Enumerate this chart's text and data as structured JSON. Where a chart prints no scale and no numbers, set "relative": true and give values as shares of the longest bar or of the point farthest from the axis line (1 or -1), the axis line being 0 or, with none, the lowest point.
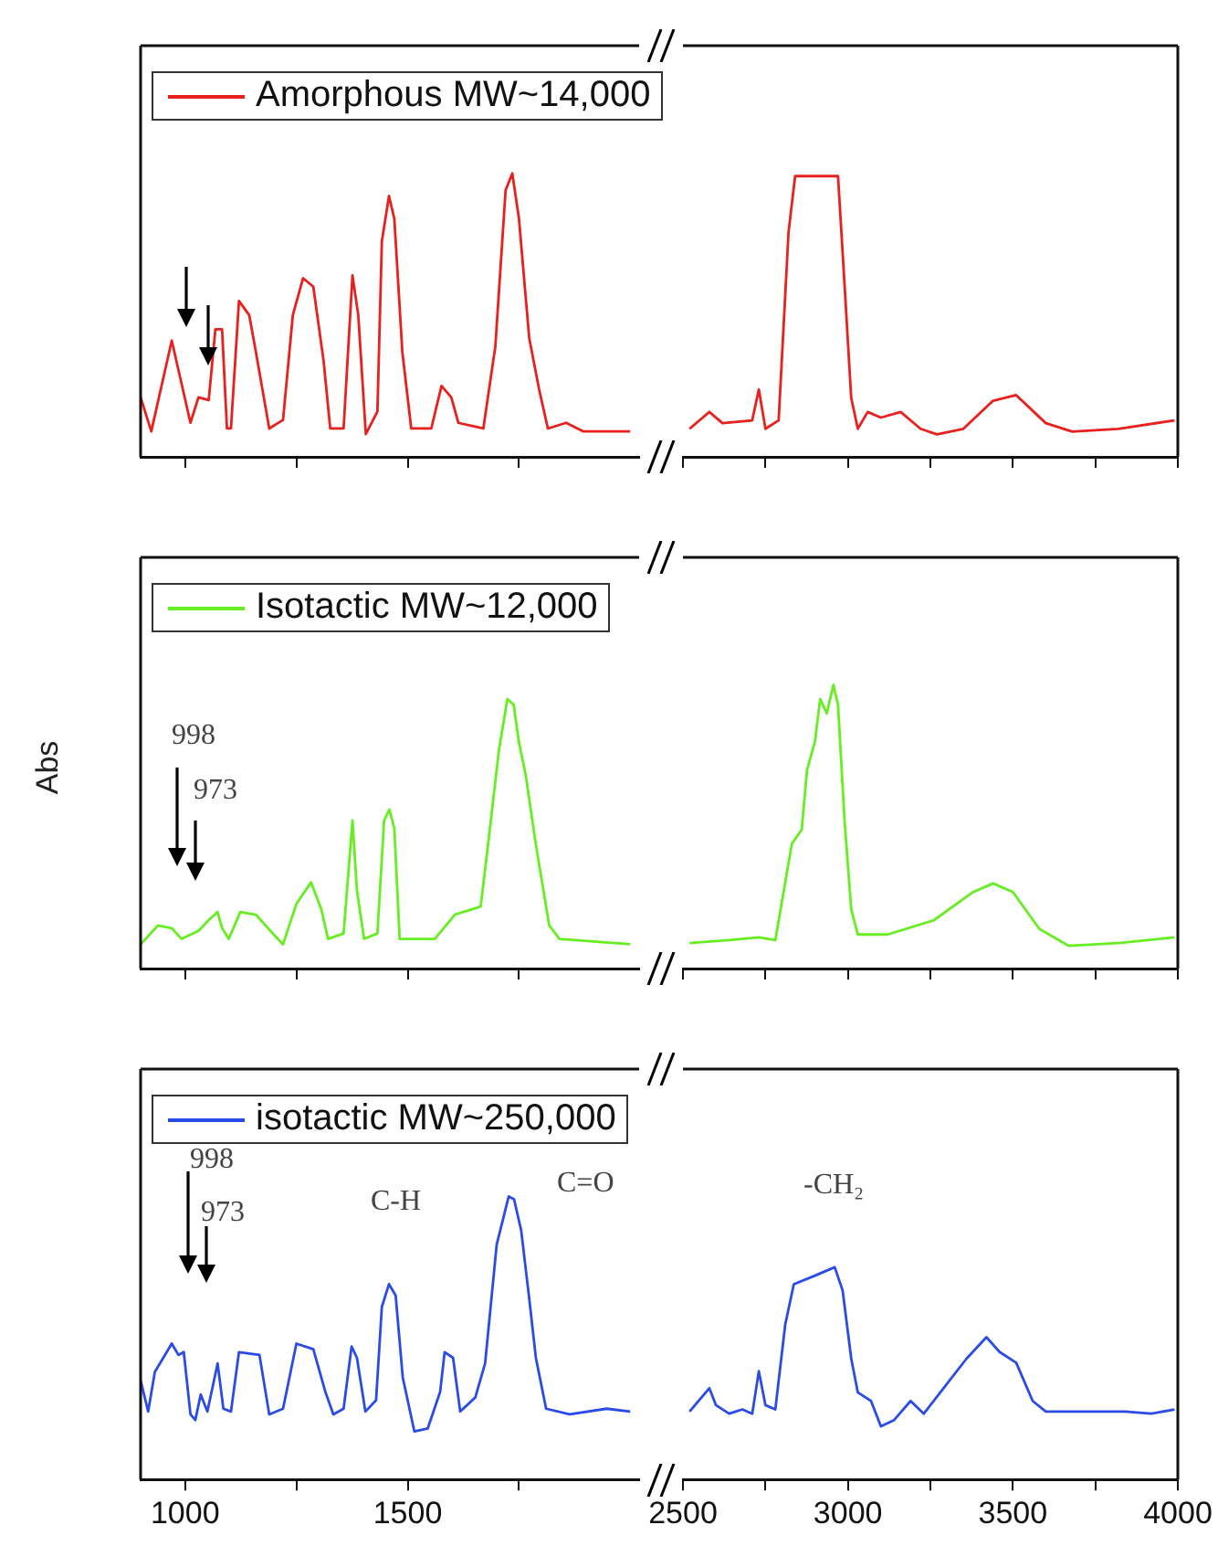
{
  "chart_data": [
    {
      "type": "line",
      "relative": true,
      "legend": "top left",
      "tick_labels": false,
      "xlim": [
        900,
        2020
      ],
      "xticks": [
        1000,
        {
          "value": 1250,
          "label": null
        },
        1500,
        {
          "value": 1750,
          "label": null
        }
      ],
      "x": [
        900,
        924,
        970,
        1012,
        1030,
        1053,
        1068,
        1083,
        1094,
        1103,
        1121,
        1144,
        1159,
        1189,
        1220,
        1242,
        1265,
        1288,
        1311,
        1326,
        1356,
        1376,
        1389,
        1406,
        1432,
        1442,
        1458,
        1470,
        1488,
        1508,
        1553,
        1576,
        1598,
        1614,
        1670,
        1697,
        1720,
        1735,
        1750,
        1773,
        1795,
        1815,
        1856,
        1894,
        2000
      ],
      "series": [
        {
          "name": "Amorphous MW~14,000",
          "color": "#e8201e",
          "values": [
            0.21,
            0.09,
            0.41,
            0.12,
            0.21,
            0.2,
            0.45,
            0.45,
            0.1,
            0.1,
            0.55,
            0.5,
            0.37,
            0.1,
            0.13,
            0.5,
            0.63,
            0.6,
            0.34,
            0.1,
            0.1,
            0.64,
            0.5,
            0.08,
            0.16,
            0.76,
            0.92,
            0.84,
            0.37,
            0.1,
            0.1,
            0.25,
            0.21,
            0.12,
            0.1,
            0.39,
            0.94,
            1.0,
            0.84,
            0.42,
            0.24,
            0.1,
            0.12,
            0.09,
            0.09
          ]
        }
      ]
    },
    {
      "type": "line",
      "relative": true,
      "tick_labels": false,
      "xlim": [
        2500,
        4000
      ],
      "xticks": [
        2500,
        {
          "value": 2750,
          "label": null
        },
        3000,
        {
          "value": 3250,
          "label": null
        },
        3500,
        {
          "value": 3750,
          "label": null
        },
        4000
      ],
      "x": [
        2520,
        2580,
        2620,
        2710,
        2730,
        2750,
        2790,
        2820,
        2840,
        2970,
        2990,
        3010,
        3030,
        3060,
        3100,
        3160,
        3220,
        3270,
        3350,
        3440,
        3510,
        3600,
        3680,
        3820,
        3990
      ],
      "series": [
        {
          "color": "#e8201e",
          "values": [
            0.1,
            0.16,
            0.12,
            0.13,
            0.24,
            0.1,
            0.13,
            0.8,
            1.0,
            1.0,
            0.61,
            0.21,
            0.1,
            0.16,
            0.14,
            0.16,
            0.1,
            0.08,
            0.1,
            0.2,
            0.22,
            0.12,
            0.09,
            0.1,
            0.13
          ]
        }
      ]
    },
    {
      "type": "line",
      "relative": true,
      "legend": "top left",
      "tick_labels": false,
      "ylabel": "Abs",
      "xlim": [
        900,
        2020
      ],
      "xticks": [
        1000,
        {
          "value": 1250,
          "label": null
        },
        1500,
        {
          "value": 1750,
          "label": null
        }
      ],
      "x": [
        900,
        939,
        970,
        992,
        1030,
        1053,
        1073,
        1083,
        1098,
        1124,
        1159,
        1197,
        1220,
        1250,
        1283,
        1306,
        1321,
        1356,
        1376,
        1386,
        1402,
        1432,
        1447,
        1459,
        1470,
        1482,
        1561,
        1606,
        1664,
        1682,
        1705,
        1724,
        1738,
        1750,
        1765,
        1788,
        1818,
        1841,
        2000
      ],
      "series": [
        {
          "name": "Isotactic MW~12,000",
          "color": "#66ee22",
          "values": [
            0.09,
            0.16,
            0.15,
            0.11,
            0.14,
            0.18,
            0.21,
            0.15,
            0.11,
            0.21,
            0.2,
            0.13,
            0.09,
            0.24,
            0.32,
            0.22,
            0.11,
            0.13,
            0.55,
            0.29,
            0.11,
            0.13,
            0.55,
            0.59,
            0.52,
            0.11,
            0.11,
            0.2,
            0.23,
            0.48,
            0.81,
            1.0,
            0.98,
            0.84,
            0.72,
            0.46,
            0.16,
            0.11,
            0.09
          ]
        }
      ],
      "annotations": [
        "998",
        "973"
      ]
    },
    {
      "type": "line",
      "relative": true,
      "tick_labels": false,
      "xlim": [
        2500,
        4000
      ],
      "xticks": [
        2500,
        {
          "value": 2750,
          "label": null
        },
        3000,
        {
          "value": 3250,
          "label": null
        },
        3500,
        {
          "value": 3750,
          "label": null
        },
        4000
      ],
      "x": [
        2520,
        2640,
        2730,
        2780,
        2830,
        2860,
        2876,
        2900,
        2916,
        2936,
        2956,
        2970,
        2990,
        3010,
        3030,
        3120,
        3260,
        3380,
        3440,
        3500,
        3580,
        3670,
        3820,
        3990
      ],
      "series": [
        {
          "color": "#66ee22",
          "values": [
            0.09,
            0.1,
            0.11,
            0.1,
            0.44,
            0.49,
            0.7,
            0.8,
            0.95,
            0.9,
            1.0,
            0.93,
            0.52,
            0.21,
            0.12,
            0.12,
            0.17,
            0.27,
            0.3,
            0.27,
            0.14,
            0.08,
            0.09,
            0.11
          ]
        }
      ]
    },
    {
      "type": "line",
      "relative": true,
      "legend": "top left",
      "tick_labels": "x",
      "xlim": [
        900,
        2020
      ],
      "xticks": [
        1000,
        {
          "value": 1250,
          "label": null
        },
        1500,
        {
          "value": 1750,
          "label": null
        }
      ],
      "x": [
        900,
        917,
        932,
        970,
        985,
        997,
        1012,
        1023,
        1035,
        1050,
        1073,
        1086,
        1103,
        1121,
        1167,
        1189,
        1220,
        1250,
        1288,
        1315,
        1333,
        1356,
        1374,
        1386,
        1405,
        1429,
        1442,
        1458,
        1473,
        1489,
        1515,
        1545,
        1573,
        1583,
        1602,
        1618,
        1652,
        1674,
        1700,
        1727,
        1739,
        1755,
        1773,
        1788,
        1811,
        1864,
        1947,
        2000
      ],
      "series": [
        {
          "name": "isotactic MW~250,000",
          "color": "#2a4be8",
          "values": [
            0.35,
            0.24,
            0.38,
            0.48,
            0.44,
            0.45,
            0.23,
            0.21,
            0.3,
            0.24,
            0.41,
            0.25,
            0.24,
            0.45,
            0.44,
            0.23,
            0.25,
            0.48,
            0.46,
            0.31,
            0.23,
            0.25,
            0.47,
            0.43,
            0.24,
            0.28,
            0.61,
            0.69,
            0.65,
            0.36,
            0.17,
            0.18,
            0.31,
            0.45,
            0.43,
            0.24,
            0.29,
            0.41,
            0.83,
            1.0,
            0.99,
            0.88,
            0.64,
            0.43,
            0.25,
            0.23,
            0.25,
            0.24
          ]
        }
      ],
      "annotations": [
        "998",
        "973",
        "C-H",
        "C=O"
      ]
    },
    {
      "type": "line",
      "relative": true,
      "tick_labels": "x",
      "xlim": [
        2500,
        4000
      ],
      "xticks": [
        2500,
        {
          "value": 2750,
          "label": null
        },
        3000,
        {
          "value": 3250,
          "label": null
        },
        3500,
        {
          "value": 3750,
          "label": null
        },
        4000
      ],
      "x": [
        2520,
        2580,
        2600,
        2640,
        2680,
        2710,
        2730,
        2750,
        2780,
        2810,
        2836,
        2900,
        2960,
        2984,
        3010,
        3030,
        3070,
        3100,
        3140,
        3190,
        3230,
        3280,
        3360,
        3420,
        3460,
        3510,
        3560,
        3600,
        3720,
        3840,
        3920,
        3990
      ],
      "series": [
        {
          "color": "#2a4be8",
          "values": [
            0.32,
            0.43,
            0.35,
            0.31,
            0.33,
            0.31,
            0.51,
            0.35,
            0.33,
            0.73,
            0.92,
            0.96,
            1.0,
            0.89,
            0.57,
            0.41,
            0.37,
            0.25,
            0.28,
            0.37,
            0.31,
            0.41,
            0.57,
            0.67,
            0.6,
            0.55,
            0.37,
            0.32,
            0.32,
            0.32,
            0.31,
            0.33
          ]
        }
      ],
      "annotations": [
        "-CH₂"
      ]
    }
  ]
}
